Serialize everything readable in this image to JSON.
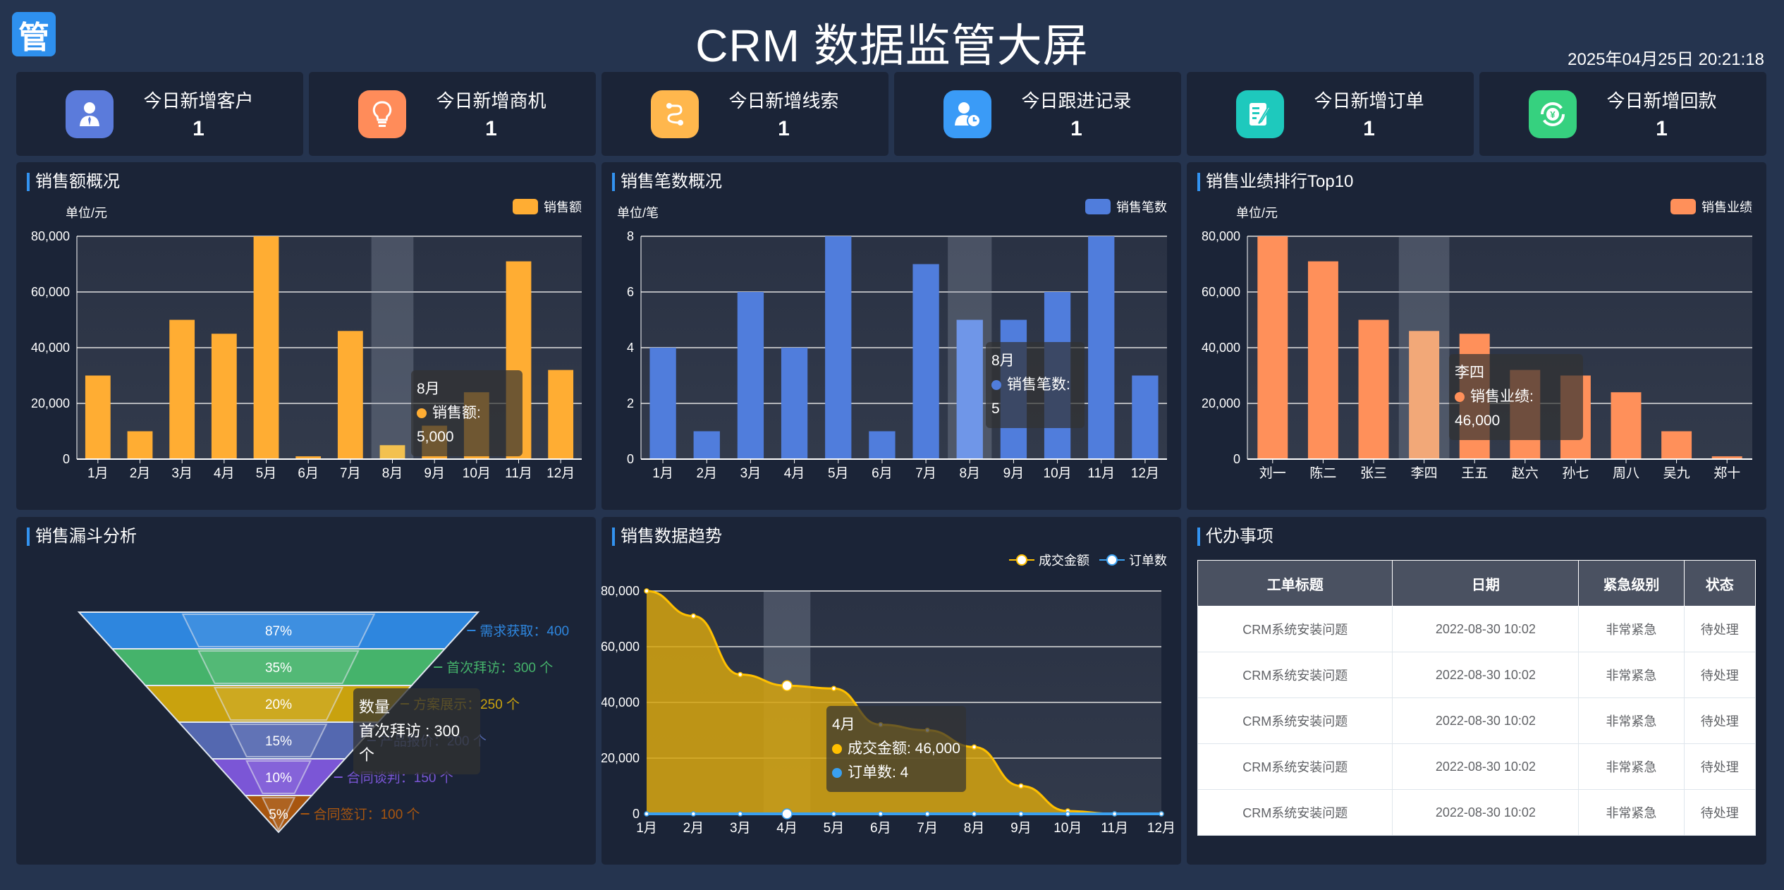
{
  "header": {
    "logo_char": "管",
    "title": "CRM 数据监管大屏",
    "datetime": "2025年04月25日 20:21:18"
  },
  "stats": [
    {
      "label": "今日新增客户",
      "value": "1",
      "icon": "customer-icon",
      "color": "#5b7bdb"
    },
    {
      "label": "今日新增商机",
      "value": "1",
      "icon": "lightbulb-icon",
      "color": "#ff8c5a"
    },
    {
      "label": "今日新增线索",
      "value": "1",
      "icon": "route-icon",
      "color": "#ffb74d"
    },
    {
      "label": "今日跟进记录",
      "value": "1",
      "icon": "user-clock-icon",
      "color": "#3a9bf7"
    },
    {
      "label": "今日新增订单",
      "value": "1",
      "icon": "order-edit-icon",
      "color": "#1ec9bd"
    },
    {
      "label": "今日新增回款",
      "value": "1",
      "icon": "payment-return-icon",
      "color": "#36d17f"
    }
  ],
  "panels": {
    "sales_amount": {
      "title": "销售额概况",
      "unit": "单位/元",
      "legend": "销售额",
      "tooltip": {
        "title": "8月",
        "label": "销售额: 5,000"
      }
    },
    "sales_count": {
      "title": "销售笔数概况",
      "unit": "单位/笔",
      "legend": "销售笔数",
      "tooltip": {
        "title": "8月",
        "label": "销售笔数: 5"
      }
    },
    "ranking": {
      "title": "销售业绩排行Top10",
      "unit": "单位/元",
      "legend": "销售业绩",
      "tooltip": {
        "title": "李四",
        "label": "销售业绩: 46,000"
      }
    },
    "funnel": {
      "title": "销售漏斗分析",
      "tooltip": {
        "title": "数量",
        "label": "首次拜访 : 300 个"
      }
    },
    "trend": {
      "title": "销售数据趋势",
      "legend": [
        "成交金额",
        "订单数"
      ],
      "tooltip": {
        "title": "4月",
        "line1": "成交金额: 46,000",
        "line2": "订单数: 4"
      }
    },
    "todo": {
      "title": "代办事项",
      "columns": [
        "工单标题",
        "日期",
        "紧急级别",
        "状态"
      ],
      "rows": [
        [
          "CRM系统安装问题",
          "2022-08-30 10:02",
          "非常紧急",
          "待处理"
        ],
        [
          "CRM系统安装问题",
          "2022-08-30 10:02",
          "非常紧急",
          "待处理"
        ],
        [
          "CRM系统安装问题",
          "2022-08-30 10:02",
          "非常紧急",
          "待处理"
        ],
        [
          "CRM系统安装问题",
          "2022-08-30 10:02",
          "非常紧急",
          "待处理"
        ],
        [
          "CRM系统安装问题",
          "2022-08-30 10:02",
          "非常紧急",
          "待处理"
        ]
      ]
    }
  },
  "chart_data": [
    {
      "type": "bar",
      "title": "销售额概况",
      "ylabel": "单位/元",
      "legend": [
        "销售额"
      ],
      "color": "#ffad33",
      "categories": [
        "1月",
        "2月",
        "3月",
        "4月",
        "5月",
        "6月",
        "7月",
        "8月",
        "9月",
        "10月",
        "11月",
        "12月"
      ],
      "values": [
        30000,
        10000,
        50000,
        45000,
        80000,
        1000,
        46000,
        5000,
        12000,
        24000,
        71000,
        32000
      ],
      "ylim": [
        0,
        80000
      ],
      "yticks": [
        "0",
        "20,000",
        "40,000",
        "60,000",
        "80,000"
      ],
      "highlight_index": 7
    },
    {
      "type": "bar",
      "title": "销售笔数概况",
      "ylabel": "单位/笔",
      "legend": [
        "销售笔数"
      ],
      "color": "#507ddc",
      "categories": [
        "1月",
        "2月",
        "3月",
        "4月",
        "5月",
        "6月",
        "7月",
        "8月",
        "9月",
        "10月",
        "11月",
        "12月"
      ],
      "values": [
        4,
        1,
        6,
        4,
        8,
        1,
        7,
        5,
        5,
        6,
        8,
        3
      ],
      "ylim": [
        0,
        8
      ],
      "yticks": [
        "0",
        "2",
        "4",
        "6",
        "8"
      ],
      "highlight_index": 7
    },
    {
      "type": "bar",
      "title": "销售业绩排行Top10",
      "ylabel": "单位/元",
      "legend": [
        "销售业绩"
      ],
      "color": "#ff905a",
      "categories": [
        "刘一",
        "陈二",
        "张三",
        "李四",
        "王五",
        "赵六",
        "孙七",
        "周八",
        "吴九",
        "郑十"
      ],
      "values": [
        80000,
        71000,
        50000,
        46000,
        45000,
        32000,
        30000,
        24000,
        10000,
        1000
      ],
      "ylim": [
        0,
        80000
      ],
      "yticks": [
        "0",
        "20,000",
        "40,000",
        "60,000",
        "80,000"
      ],
      "highlight_index": 3
    },
    {
      "type": "funnel",
      "title": "销售漏斗分析",
      "stages": [
        {
          "name": "需求获取",
          "value": 400,
          "label": "需求获取：400",
          "pct": "87%",
          "color": "#2e86de"
        },
        {
          "name": "首次拜访",
          "value": 300,
          "label": "首次拜访：300 个",
          "pct": "35%",
          "color": "#45b36b"
        },
        {
          "name": "方案展示",
          "value": 250,
          "label": "方案展示：250 个",
          "pct": "20%",
          "color": "#c9a20e"
        },
        {
          "name": "产品报价",
          "value": 200,
          "label": "产品报价：200 个",
          "pct": "15%",
          "color": "#5468b0"
        },
        {
          "name": "合同谈判",
          "value": 150,
          "label": "合同谈判：150 个",
          "pct": "10%",
          "color": "#7b56d6"
        },
        {
          "name": "合同签订",
          "value": 100,
          "label": "合同签订：100 个",
          "pct": "5%",
          "color": "#a8560f"
        }
      ]
    },
    {
      "type": "area",
      "title": "销售数据趋势",
      "categories": [
        "1月",
        "2月",
        "3月",
        "4月",
        "5月",
        "6月",
        "7月",
        "8月",
        "9月",
        "10月",
        "11月",
        "12月"
      ],
      "series": [
        {
          "name": "成交金额",
          "values": [
            80000,
            71000,
            50000,
            46000,
            45000,
            32000,
            30000,
            24000,
            10000,
            1000,
            0,
            0
          ],
          "color": "#ffc000"
        },
        {
          "name": "订单数",
          "values": [
            0,
            0,
            0,
            4,
            0,
            0,
            0,
            0,
            0,
            0,
            0,
            0
          ],
          "color": "#3aa0f0"
        }
      ],
      "ylim": [
        0,
        80000
      ],
      "yticks": [
        "0",
        "20,000",
        "40,000",
        "60,000",
        "80,000"
      ],
      "highlight_index": 3
    }
  ]
}
